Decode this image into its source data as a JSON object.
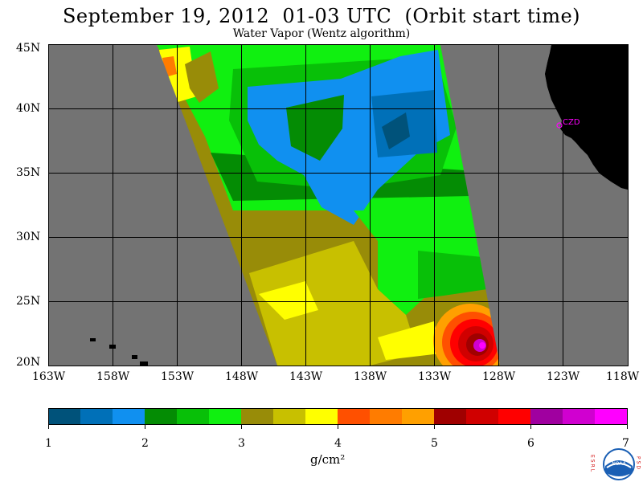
{
  "header": {
    "title": "September 19, 2012  01-03 UTC  (Orbit start time)",
    "subtitle": "Water Vapor (Wentz algorithm)"
  },
  "map": {
    "lat_labels": [
      "45N",
      "40N",
      "35N",
      "30N",
      "25N",
      "20N"
    ],
    "lon_labels": [
      "163W",
      "158W",
      "153W",
      "148W",
      "143W",
      "138W",
      "133W",
      "128W",
      "123W",
      "118W"
    ],
    "station_label": "CZD",
    "colors": {
      "no_data": "#737373",
      "land": "#000000",
      "grid": "#000000",
      "station": "#ff00ff"
    }
  },
  "colorbar": {
    "labels": [
      "1",
      "2",
      "3",
      "4",
      "5",
      "6",
      "7"
    ],
    "colors": [
      "#00527a",
      "#0070b8",
      "#1090f0",
      "#048c04",
      "#08c008",
      "#10f010",
      "#988c08",
      "#c8c000",
      "#ffff00",
      "#ff5000",
      "#ff7c00",
      "#ffa000",
      "#a00000",
      "#d00000",
      "#ff0000",
      "#a000a0",
      "#d000d0",
      "#ff00ff"
    ],
    "units": "g/cm²"
  },
  "logo": {
    "left_text": "ESRL",
    "right_text": "PSD",
    "center_text": "NOAA"
  }
}
